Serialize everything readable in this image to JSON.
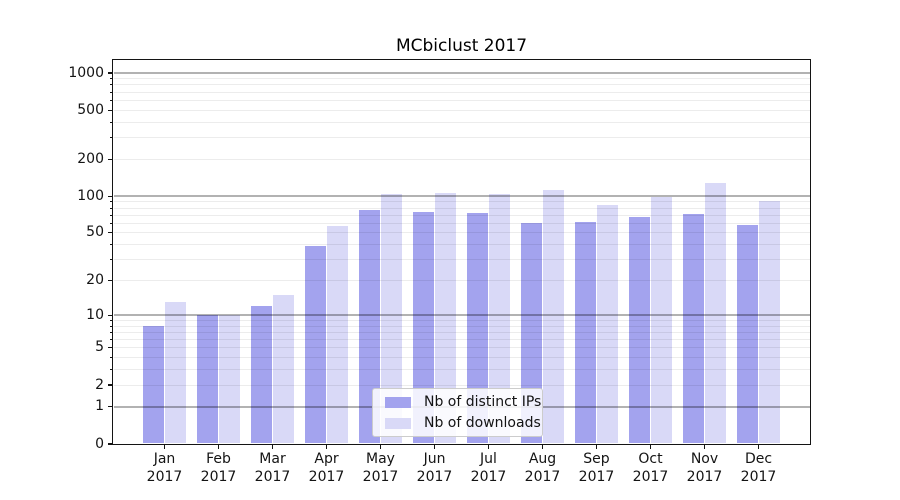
{
  "chart_data": {
    "type": "bar",
    "title": "MCbiclust 2017",
    "categories": [
      "Jan",
      "Feb",
      "Mar",
      "Apr",
      "May",
      "Jun",
      "Jul",
      "Aug",
      "Sep",
      "Oct",
      "Nov",
      "Dec"
    ],
    "year_label": "2017",
    "series": [
      {
        "key": "ips",
        "name": "Nb of distinct IPs",
        "color": "#a3a3ee",
        "values": [
          8,
          10,
          12,
          39,
          77,
          74,
          73,
          60,
          61,
          68,
          72,
          58
        ]
      },
      {
        "key": "downloads",
        "name": "Nb of downloads",
        "color": "#d9d9f7",
        "values": [
          13,
          10,
          15,
          57,
          104,
          106,
          105,
          113,
          85,
          99,
          128,
          92
        ]
      }
    ],
    "y_ticks": [
      0,
      1,
      2,
      5,
      10,
      20,
      50,
      100,
      200,
      500,
      1000
    ],
    "y_scale": "log1p",
    "ylim": [
      0,
      1270
    ],
    "grid": "on",
    "legend_position": "lower-center"
  }
}
